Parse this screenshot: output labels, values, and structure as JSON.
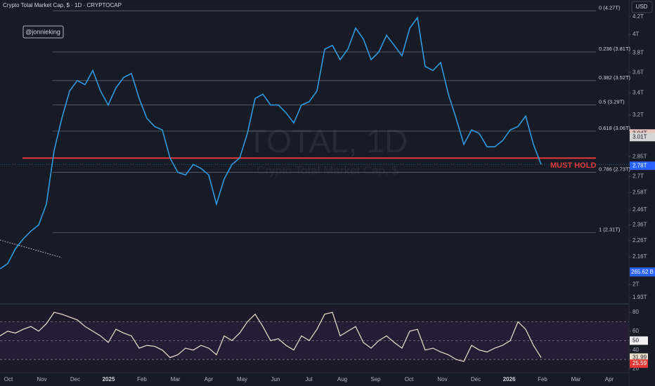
{
  "header": {
    "title": "Crypto Total Market Cap, $ · 1D · CRYPTOCAP",
    "author": "@jonnieking",
    "currency": "USD"
  },
  "watermark": {
    "symbol": "TOTAL, 1D",
    "name": "Crypto Total Market Cap, $"
  },
  "chart_data": {
    "type": "line",
    "log_scale": true,
    "ylim": [
      1.9,
      4.4
    ],
    "yticks": [
      {
        "value": 4.2,
        "label": "4.2T"
      },
      {
        "value": 4.0,
        "label": "4T"
      },
      {
        "value": 3.8,
        "label": "3.8T"
      },
      {
        "value": 3.6,
        "label": "3.6T"
      },
      {
        "value": 3.4,
        "label": "3.4T"
      },
      {
        "value": 3.2,
        "label": "3.2T"
      },
      {
        "value": 2.85,
        "label": "2.85T"
      },
      {
        "value": 2.7,
        "label": "2.7T"
      },
      {
        "value": 2.58,
        "label": "2.58T"
      },
      {
        "value": 2.46,
        "label": "2.46T"
      },
      {
        "value": 2.36,
        "label": "2.36T"
      },
      {
        "value": 2.26,
        "label": "2.26T"
      },
      {
        "value": 2.16,
        "label": "2.16T"
      },
      {
        "value": 2.0,
        "label": "2T"
      },
      {
        "value": 1.93,
        "label": "1.93T"
      }
    ],
    "color": "#2f9ae0",
    "values": [
      2.09,
      2.12,
      2.21,
      2.27,
      2.32,
      2.36,
      2.5,
      2.9,
      3.17,
      3.42,
      3.52,
      3.48,
      3.62,
      3.42,
      3.29,
      3.45,
      3.55,
      3.59,
      3.35,
      3.17,
      3.1,
      3.07,
      2.84,
      2.73,
      2.71,
      2.79,
      2.76,
      2.71,
      2.5,
      2.68,
      2.79,
      2.84,
      3.04,
      3.35,
      3.39,
      3.29,
      3.29,
      3.22,
      3.13,
      3.29,
      3.32,
      3.42,
      3.84,
      3.88,
      3.73,
      3.84,
      4.07,
      3.95,
      3.73,
      3.81,
      3.99,
      3.88,
      3.77,
      4.07,
      4.19,
      3.66,
      3.62,
      3.7,
      3.39,
      3.17,
      2.95,
      3.07,
      3.04,
      2.93,
      2.93,
      2.98,
      3.07,
      3.1,
      3.19,
      2.95,
      2.79
    ],
    "fib_levels": [
      {
        "value": 4.27,
        "label": "0 (4.27T)"
      },
      {
        "value": 3.81,
        "label": "0.236 (3.81T)"
      },
      {
        "value": 3.52,
        "label": "0.382 (3.52T)"
      },
      {
        "value": 3.29,
        "label": "0.5 (3.29T)"
      },
      {
        "value": 3.06,
        "label": "0.618 (3.06T)"
      },
      {
        "value": 2.73,
        "label": "0.786 (2.73T)"
      },
      {
        "value": 2.31,
        "label": "1 (2.31T)"
      }
    ],
    "support": {
      "value": 2.84,
      "label": "MUST HOLD",
      "color": "#e53935"
    },
    "price_tags": [
      {
        "value": 3.04,
        "label": "3.04T",
        "color": "#e8c4bd"
      },
      {
        "value": 3.01,
        "label": "3.01T",
        "color": "#d6d6d6"
      },
      {
        "value": 2.78,
        "label": "2.78T",
        "color": "#2962ff"
      }
    ],
    "volume_tag": "265.62 B",
    "x_labels": [
      "Oct",
      "Nov",
      "Dec",
      "2025",
      "Feb",
      "Mar",
      "Apr",
      "May",
      "Jun",
      "Jul",
      "Aug",
      "Sep",
      "Oct",
      "Nov",
      "Dec",
      "2026",
      "Feb",
      "Mar",
      "Apr"
    ],
    "rsi": {
      "ylim": [
        16,
        86
      ],
      "yticks": [
        80,
        60,
        40,
        20
      ],
      "bands": [
        70,
        50,
        30
      ],
      "color": "#eee2cc",
      "values": [
        55,
        60,
        58,
        62,
        65,
        60,
        68,
        80,
        78,
        75,
        72,
        65,
        60,
        55,
        48,
        62,
        58,
        55,
        42,
        45,
        44,
        40,
        32,
        35,
        42,
        40,
        45,
        42,
        35,
        55,
        50,
        58,
        70,
        78,
        65,
        50,
        52,
        45,
        40,
        55,
        50,
        62,
        78,
        80,
        55,
        60,
        65,
        48,
        42,
        50,
        55,
        48,
        42,
        60,
        62,
        40,
        42,
        38,
        35,
        30,
        28,
        45,
        40,
        38,
        42,
        45,
        50,
        70,
        62,
        45,
        32
      ],
      "tags": [
        {
          "value": 50,
          "label": "50",
          "color": "#f0f0f0"
        },
        {
          "value": 31.99,
          "label": "31.99",
          "color": "#eee2cc"
        },
        {
          "value": 25.59,
          "label": "25.59",
          "color": "#e53935"
        }
      ]
    }
  }
}
